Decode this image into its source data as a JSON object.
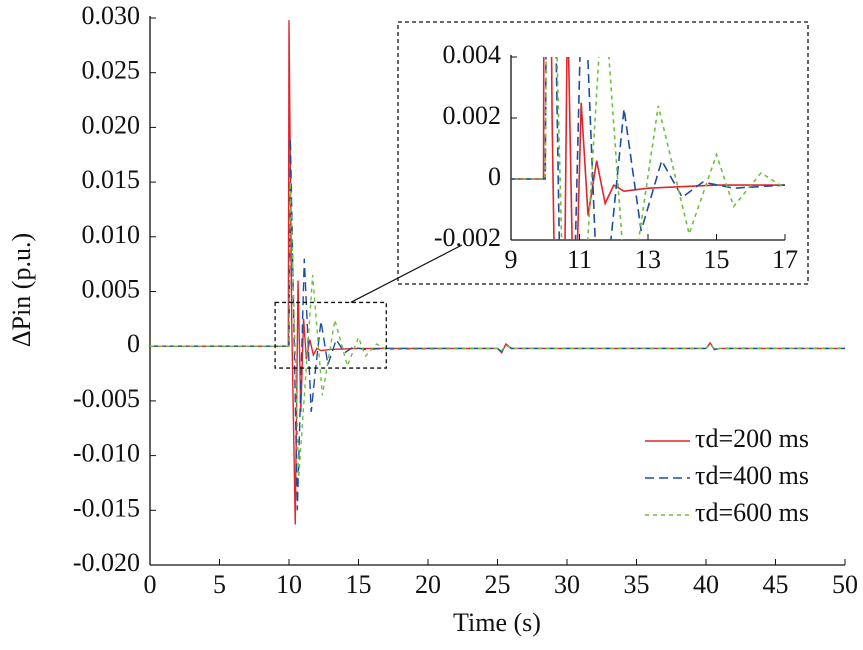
{
  "chart_data": {
    "type": "line",
    "xlabel": "Time (s)",
    "ylabel": "ΔPin (p.u.)",
    "xlim": [
      0,
      50
    ],
    "xticks": [
      0,
      5,
      10,
      15,
      20,
      25,
      30,
      35,
      40,
      45,
      50
    ],
    "ylim": [
      -0.02,
      0.03
    ],
    "yticks": [
      {
        "value": 0.03,
        "label": "0.030"
      },
      0.025,
      {
        "value": 0.02,
        "label": "0.020"
      },
      0.015,
      {
        "value": 0.01,
        "label": "0.010"
      },
      0.005,
      0,
      -0.005,
      {
        "value": -0.01,
        "label": "-0.010"
      },
      -0.015,
      {
        "value": -0.02,
        "label": "-0.020"
      }
    ],
    "legend": "lower right",
    "series": [
      {
        "name": "τd=200 ms",
        "color": "#e0262b",
        "line_style": "solid",
        "x": [
          0,
          9.95,
          10.0,
          10.2,
          10.45,
          10.65,
          10.85,
          11.05,
          11.25,
          11.5,
          11.75,
          12.0,
          12.3,
          13,
          15,
          17,
          25,
          25.3,
          25.6,
          26,
          40,
          40.3,
          40.6,
          41,
          50
        ],
        "values": [
          0,
          0,
          0.0298,
          0.002,
          -0.0163,
          0.006,
          -0.006,
          0.0025,
          -0.0012,
          0.0006,
          -0.0008,
          -0.0002,
          -0.0004,
          -0.0003,
          -0.0002,
          -0.0002,
          -0.0002,
          -0.0006,
          0.0002,
          -0.0002,
          -0.0002,
          0.0003,
          -0.0003,
          -0.0002,
          -0.0002
        ]
      },
      {
        "name": "τd=400 ms",
        "color": "#1f4e9c",
        "line_style": "dashed",
        "x": [
          0,
          10.0,
          10.1,
          10.6,
          11.1,
          11.6,
          11.9,
          12.3,
          12.8,
          13.4,
          14.0,
          14.6,
          15.5,
          17,
          25,
          25.3,
          25.6,
          26,
          40,
          40.3,
          40.6,
          41,
          50
        ],
        "values": [
          0,
          0,
          0.019,
          -0.015,
          0.008,
          -0.006,
          -0.0022,
          0.0023,
          -0.0017,
          0.0006,
          -0.0006,
          -0.0001,
          -0.0003,
          -0.0002,
          -0.0002,
          -0.0005,
          0.0001,
          -0.0002,
          -0.0002,
          0.0002,
          -0.0003,
          -0.0002,
          -0.0002
        ]
      },
      {
        "name": "τd=600 ms",
        "color": "#6cbf3f",
        "line_style": "dotted",
        "x": [
          0,
          10.0,
          10.1,
          10.7,
          11.7,
          12.4,
          13.3,
          14.2,
          15.0,
          15.5,
          16.3,
          17,
          25,
          25.3,
          25.6,
          26,
          40,
          40.3,
          40.6,
          41,
          50
        ],
        "values": [
          0,
          0,
          0.015,
          -0.012,
          0.0065,
          -0.0045,
          0.0024,
          -0.0018,
          0.0008,
          -0.0009,
          0.0002,
          -0.0003,
          -0.0002,
          -0.0004,
          0.0001,
          -0.0002,
          -0.0002,
          0.0002,
          -0.0003,
          -0.0002,
          -0.0002
        ]
      }
    ],
    "inset": {
      "xlim": [
        9,
        17
      ],
      "xticks": [
        9,
        11,
        13,
        15,
        17
      ],
      "ylim": [
        -0.002,
        0.004
      ],
      "yticks": [
        0.004,
        0.002,
        0,
        -0.002
      ]
    }
  }
}
